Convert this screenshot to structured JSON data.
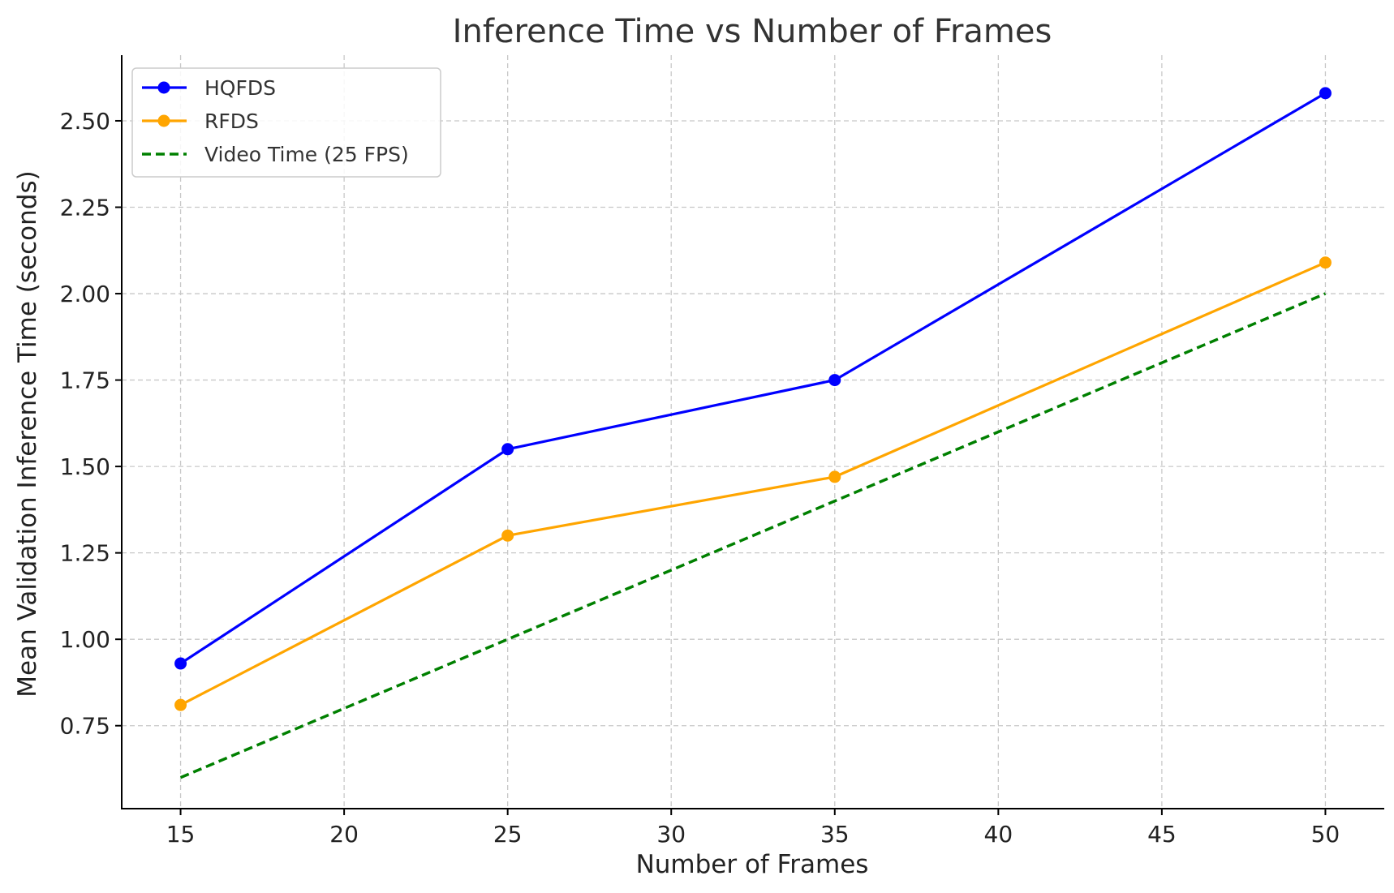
{
  "chart_data": {
    "type": "line",
    "title": "Inference Time vs Number of Frames",
    "xlabel": "Number of Frames",
    "ylabel": "Mean Validation Inference Time (seconds)",
    "x": [
      15,
      25,
      35,
      50
    ],
    "xlim": [
      13.2,
      51.8
    ],
    "ylim": [
      0.51,
      2.69
    ],
    "xticks": [
      "15",
      "20",
      "25",
      "30",
      "35",
      "40",
      "45",
      "50"
    ],
    "yticks": [
      "0.75",
      "1.00",
      "1.25",
      "1.50",
      "1.75",
      "2.00",
      "2.25",
      "2.50"
    ],
    "grid": true,
    "legend_position": "top-left",
    "series": [
      {
        "name": "HQFDS",
        "values": [
          0.93,
          1.55,
          1.75,
          2.58
        ],
        "color": "#0000ff",
        "style": "solid",
        "marker": "circle"
      },
      {
        "name": "RFDS",
        "values": [
          0.81,
          1.3,
          1.47,
          2.09
        ],
        "color": "#ffa500",
        "style": "solid",
        "marker": "circle"
      },
      {
        "name": "Video Time (25 FPS)",
        "values": [
          0.6,
          1.0,
          1.4,
          2.0
        ],
        "color": "#008000",
        "style": "dashed",
        "marker": "none"
      }
    ]
  }
}
